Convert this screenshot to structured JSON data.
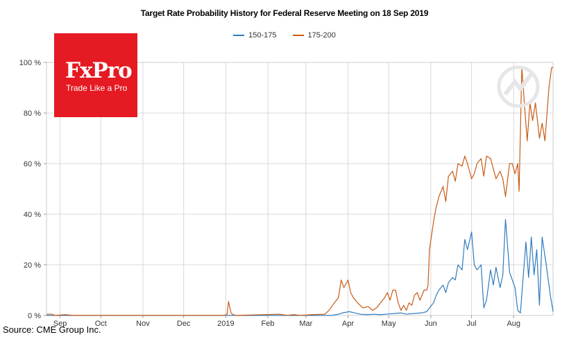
{
  "chart_data": {
    "type": "line",
    "title": "Target Rate Probability History for Federal Reserve Meeting on 18 Sep 2019",
    "xlabel": "",
    "ylabel": "",
    "ylim": [
      0,
      100
    ],
    "y_tick_labels": [
      "0 %",
      "20 %",
      "40 %",
      "60 %",
      "80 %",
      "100 %"
    ],
    "y_ticks": [
      0,
      20,
      40,
      60,
      80,
      100
    ],
    "x_range": [
      "2018-08-22",
      "2019-08-30"
    ],
    "x_ticks": [
      {
        "label": "Sep",
        "date": "2018-09-01"
      },
      {
        "label": "Oct",
        "date": "2018-10-01"
      },
      {
        "label": "Nov",
        "date": "2018-11-01"
      },
      {
        "label": "Dec",
        "date": "2018-12-01"
      },
      {
        "label": "2019",
        "date": "2019-01-01"
      },
      {
        "label": "Feb",
        "date": "2019-02-01"
      },
      {
        "label": "Mar",
        "date": "2019-03-01"
      },
      {
        "label": "Apr",
        "date": "2019-04-01"
      },
      {
        "label": "May",
        "date": "2019-05-01"
      },
      {
        "label": "Jun",
        "date": "2019-06-01"
      },
      {
        "label": "Jul",
        "date": "2019-07-01"
      },
      {
        "label": "Aug",
        "date": "2019-08-01"
      }
    ],
    "grid": true,
    "legend": "top-center",
    "series": [
      {
        "name": "150-175",
        "color": "#2e7bbd",
        "points": [
          [
            "2018-08-22",
            0
          ],
          [
            "2019-03-20",
            0
          ],
          [
            "2019-03-25",
            0.5
          ],
          [
            "2019-03-28",
            1
          ],
          [
            "2019-04-02",
            1.5
          ],
          [
            "2019-04-06",
            1
          ],
          [
            "2019-04-10",
            0.5
          ],
          [
            "2019-04-15",
            0.3
          ],
          [
            "2019-04-20",
            0.5
          ],
          [
            "2019-04-25",
            0.3
          ],
          [
            "2019-05-01",
            0.6
          ],
          [
            "2019-05-06",
            0.8
          ],
          [
            "2019-05-10",
            1
          ],
          [
            "2019-05-14",
            0.5
          ],
          [
            "2019-05-20",
            0.8
          ],
          [
            "2019-05-25",
            1
          ],
          [
            "2019-05-29",
            1.5
          ],
          [
            "2019-05-31",
            3
          ],
          [
            "2019-06-03",
            5
          ],
          [
            "2019-06-05",
            8
          ],
          [
            "2019-06-07",
            10
          ],
          [
            "2019-06-10",
            12
          ],
          [
            "2019-06-12",
            9
          ],
          [
            "2019-06-14",
            13
          ],
          [
            "2019-06-17",
            15
          ],
          [
            "2019-06-19",
            14
          ],
          [
            "2019-06-21",
            20
          ],
          [
            "2019-06-24",
            18
          ],
          [
            "2019-06-26",
            30
          ],
          [
            "2019-06-28",
            26
          ],
          [
            "2019-07-01",
            33
          ],
          [
            "2019-07-03",
            20
          ],
          [
            "2019-07-05",
            18
          ],
          [
            "2019-07-08",
            20
          ],
          [
            "2019-07-10",
            3
          ],
          [
            "2019-07-12",
            6
          ],
          [
            "2019-07-15",
            18
          ],
          [
            "2019-07-17",
            12
          ],
          [
            "2019-07-19",
            19
          ],
          [
            "2019-07-22",
            11
          ],
          [
            "2019-07-24",
            16
          ],
          [
            "2019-07-26",
            38
          ],
          [
            "2019-07-29",
            17
          ],
          [
            "2019-07-31",
            14
          ],
          [
            "2019-08-02",
            11
          ],
          [
            "2019-08-04",
            2
          ],
          [
            "2019-08-06",
            1
          ],
          [
            "2019-08-08",
            15
          ],
          [
            "2019-08-10",
            29
          ],
          [
            "2019-08-12",
            15
          ],
          [
            "2019-08-14",
            31
          ],
          [
            "2019-08-16",
            16
          ],
          [
            "2019-08-18",
            26
          ],
          [
            "2019-08-20",
            4
          ],
          [
            "2019-08-22",
            31
          ],
          [
            "2019-08-25",
            20
          ],
          [
            "2019-08-28",
            8
          ],
          [
            "2019-08-30",
            1.5
          ]
        ]
      },
      {
        "name": "175-200",
        "color": "#c85a14",
        "points": [
          [
            "2018-08-22",
            0.5
          ],
          [
            "2018-08-26",
            0.5
          ],
          [
            "2018-08-28",
            0
          ],
          [
            "2018-09-05",
            0.3
          ],
          [
            "2018-09-10",
            0
          ],
          [
            "2018-12-31",
            0
          ],
          [
            "2019-01-02",
            0.5
          ],
          [
            "2019-01-03",
            5.5
          ],
          [
            "2019-01-05",
            0.8
          ],
          [
            "2019-01-08",
            0
          ],
          [
            "2019-02-10",
            0.5
          ],
          [
            "2019-02-15",
            0
          ],
          [
            "2019-02-20",
            0.3
          ],
          [
            "2019-02-25",
            0
          ],
          [
            "2019-03-05",
            0.3
          ],
          [
            "2019-03-15",
            0.5
          ],
          [
            "2019-03-18",
            2
          ],
          [
            "2019-03-22",
            5
          ],
          [
            "2019-03-25",
            7
          ],
          [
            "2019-03-27",
            14
          ],
          [
            "2019-03-29",
            11
          ],
          [
            "2019-04-01",
            14
          ],
          [
            "2019-04-03",
            9
          ],
          [
            "2019-04-05",
            7
          ],
          [
            "2019-04-08",
            5
          ],
          [
            "2019-04-10",
            4
          ],
          [
            "2019-04-12",
            3
          ],
          [
            "2019-04-16",
            3.5
          ],
          [
            "2019-04-19",
            2
          ],
          [
            "2019-04-22",
            3
          ],
          [
            "2019-04-25",
            5
          ],
          [
            "2019-04-28",
            7
          ],
          [
            "2019-04-30",
            9
          ],
          [
            "2019-05-02",
            6
          ],
          [
            "2019-05-04",
            10
          ],
          [
            "2019-05-06",
            10
          ],
          [
            "2019-05-08",
            5
          ],
          [
            "2019-05-10",
            2
          ],
          [
            "2019-05-12",
            4
          ],
          [
            "2019-05-14",
            2
          ],
          [
            "2019-05-16",
            5
          ],
          [
            "2019-05-18",
            4
          ],
          [
            "2019-05-20",
            8
          ],
          [
            "2019-05-22",
            9
          ],
          [
            "2019-05-24",
            6
          ],
          [
            "2019-05-27",
            10
          ],
          [
            "2019-05-29",
            10
          ],
          [
            "2019-05-30",
            12
          ],
          [
            "2019-05-31",
            26
          ],
          [
            "2019-06-03",
            37
          ],
          [
            "2019-06-05",
            43
          ],
          [
            "2019-06-07",
            47
          ],
          [
            "2019-06-10",
            51
          ],
          [
            "2019-06-12",
            45
          ],
          [
            "2019-06-14",
            55
          ],
          [
            "2019-06-17",
            57
          ],
          [
            "2019-06-19",
            53
          ],
          [
            "2019-06-21",
            60
          ],
          [
            "2019-06-24",
            59
          ],
          [
            "2019-06-26",
            63
          ],
          [
            "2019-06-28",
            60
          ],
          [
            "2019-07-01",
            54
          ],
          [
            "2019-07-03",
            56
          ],
          [
            "2019-07-05",
            60
          ],
          [
            "2019-07-08",
            62
          ],
          [
            "2019-07-10",
            55
          ],
          [
            "2019-07-12",
            63
          ],
          [
            "2019-07-15",
            62
          ],
          [
            "2019-07-17",
            58
          ],
          [
            "2019-07-19",
            54
          ],
          [
            "2019-07-22",
            57
          ],
          [
            "2019-07-24",
            54
          ],
          [
            "2019-07-26",
            47
          ],
          [
            "2019-07-29",
            60
          ],
          [
            "2019-07-31",
            60
          ],
          [
            "2019-08-02",
            56
          ],
          [
            "2019-08-04",
            60
          ],
          [
            "2019-08-05",
            49
          ],
          [
            "2019-08-07",
            98
          ],
          [
            "2019-08-09",
            83
          ],
          [
            "2019-08-11",
            69
          ],
          [
            "2019-08-13",
            84
          ],
          [
            "2019-08-15",
            77
          ],
          [
            "2019-08-17",
            84
          ],
          [
            "2019-08-20",
            70
          ],
          [
            "2019-08-22",
            76
          ],
          [
            "2019-08-24",
            69
          ],
          [
            "2019-08-27",
            90
          ],
          [
            "2019-08-29",
            98
          ],
          [
            "2019-08-30",
            98
          ]
        ]
      }
    ]
  },
  "logo": {
    "name": "FxPro",
    "tagline": "Trade Like a Pro",
    "bg_color": "#e51a22"
  },
  "source": "Source: CME Group Inc."
}
